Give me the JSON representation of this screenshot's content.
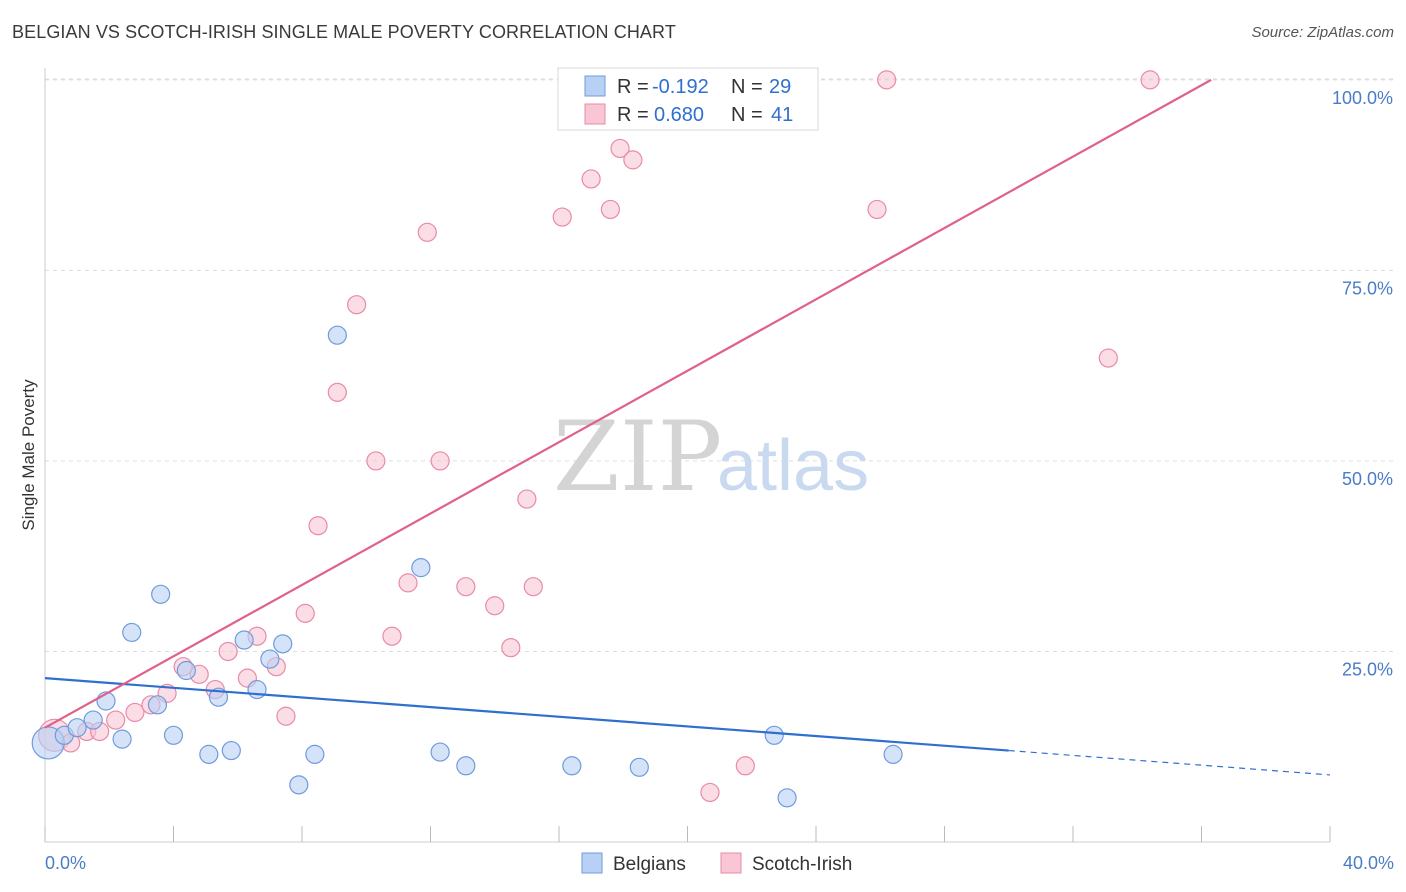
{
  "header": {
    "title": "BELGIAN VS SCOTCH-IRISH SINGLE MALE POVERTY CORRELATION CHART",
    "source": "Source: ZipAtlas.com"
  },
  "watermark": {
    "zip": "ZIP",
    "atlas": "atlas"
  },
  "colors": {
    "belgian_fill": "#b8d0f3",
    "belgian_stroke": "#6f9bde",
    "belgian_line": "#2f6fd0",
    "scotch_fill": "#f8c6d5",
    "scotch_stroke": "#e98aa8",
    "scotch_line": "#e0608a",
    "grid": "#dddddd",
    "tick_label": "#4a7cc7"
  },
  "legend_top": {
    "rows": [
      {
        "r_label": "R =",
        "r_value": "-0.192",
        "n_label": "N =",
        "n_value": "29"
      },
      {
        "r_label": "R =",
        "r_value": "0.680",
        "n_label": "N =",
        "n_value": "41"
      }
    ]
  },
  "legend_bottom": [
    "Belgians",
    "Scotch-Irish"
  ],
  "chart_data": {
    "type": "scatter",
    "title": "BELGIAN VS SCOTCH-IRISH SINGLE MALE POVERTY CORRELATION CHART",
    "xlabel": "",
    "ylabel": "Single Male Poverty",
    "xlim": [
      0,
      40
    ],
    "ylim": [
      0,
      103
    ],
    "x_tick_labels": [
      "0.0%",
      "40.0%"
    ],
    "y_ticks": [
      25,
      50,
      75,
      100
    ],
    "y_tick_labels": [
      "25.0%",
      "50.0%",
      "75.0%",
      "100.0%"
    ],
    "grid": true,
    "legend_position": "top-center",
    "series": [
      {
        "name": "Belgians",
        "x": [
          0.1,
          0.6,
          1.0,
          1.5,
          1.9,
          2.4,
          2.7,
          3.6,
          3.5,
          4.0,
          4.4,
          5.1,
          5.4,
          5.8,
          6.2,
          6.6,
          7.0,
          7.4,
          7.9,
          8.4,
          9.1,
          11.7,
          12.3,
          13.1,
          16.4,
          18.5,
          22.7,
          23.1,
          26.4
        ],
        "y": [
          13.0,
          14.0,
          15.0,
          16.0,
          18.5,
          13.5,
          27.5,
          32.5,
          18.0,
          14.0,
          22.5,
          11.5,
          19.0,
          12.0,
          26.5,
          20.0,
          24.0,
          26.0,
          7.5,
          11.5,
          66.5,
          36.0,
          11.8,
          10.0,
          10.0,
          9.8,
          14.0,
          5.8,
          11.5
        ]
      },
      {
        "name": "Scotch-Irish",
        "x": [
          0.3,
          0.8,
          1.3,
          1.7,
          2.2,
          2.8,
          3.3,
          3.8,
          4.3,
          4.8,
          5.3,
          5.7,
          6.3,
          6.6,
          7.2,
          7.5,
          8.1,
          8.5,
          9.1,
          9.7,
          10.3,
          10.8,
          11.3,
          11.9,
          12.3,
          13.1,
          14.0,
          14.5,
          15.0,
          15.2,
          16.1,
          17.0,
          17.6,
          17.9,
          18.3,
          20.7,
          21.8,
          25.9,
          26.2,
          33.1,
          34.4
        ],
        "y": [
          14.0,
          13.0,
          14.5,
          14.5,
          16.0,
          17.0,
          18.0,
          19.5,
          23.0,
          22.0,
          20.0,
          25.0,
          21.5,
          27.0,
          23.0,
          16.5,
          30.0,
          41.5,
          59.0,
          70.5,
          50.0,
          27.0,
          34.0,
          80.0,
          50.0,
          33.5,
          31.0,
          25.5,
          45.0,
          33.5,
          82.0,
          87.0,
          83.0,
          91.0,
          89.5,
          6.5,
          10.0,
          83.0,
          100.0,
          63.5,
          100.0
        ]
      }
    ],
    "trend_lines": [
      {
        "name": "Belgians",
        "solid": [
          [
            0,
            21.5
          ],
          [
            30,
            12.0
          ]
        ],
        "dashed": [
          [
            30,
            12.0
          ],
          [
            40,
            8.8
          ]
        ]
      },
      {
        "name": "Scotch-Irish",
        "solid": [
          [
            0,
            15.0
          ],
          [
            36.3,
            100.0
          ]
        ]
      }
    ]
  }
}
